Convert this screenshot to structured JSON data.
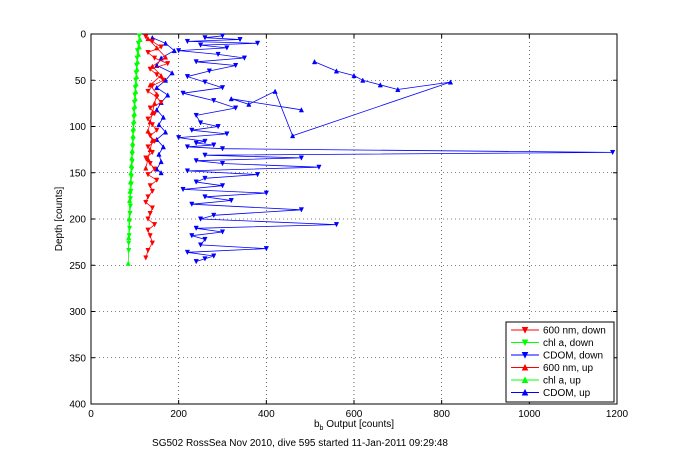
{
  "chart_data": {
    "type": "line",
    "title": "",
    "caption": "SG502 RossSea Nov 2010, dive 595 started 11-Jan-2011 09:29:48",
    "xlabel_main": "b",
    "xlabel_sub": "b",
    "xlabel_rest": " Output [counts]",
    "ylabel": "Depth [counts]",
    "xlim": [
      0,
      1200
    ],
    "ylim": [
      0,
      400
    ],
    "y_reversed": true,
    "xticks": [
      0,
      200,
      400,
      600,
      800,
      1000,
      1200
    ],
    "yticks": [
      0,
      50,
      100,
      150,
      200,
      250,
      300,
      350,
      400
    ],
    "grid": true,
    "legend_position": "bottom-right",
    "legend": [
      {
        "label": "600 nm, down",
        "color": "#ff0000",
        "marker": "triangle-down"
      },
      {
        "label": "chl a, down",
        "color": "#00ff00",
        "marker": "triangle-down"
      },
      {
        "label": "CDOM, down",
        "color": "#0000ff",
        "marker": "triangle-down"
      },
      {
        "label": "600 nm, up",
        "color": "#ff0000",
        "marker": "triangle-up"
      },
      {
        "label": "chl a, up",
        "color": "#00ff00",
        "marker": "triangle-up"
      },
      {
        "label": "CDOM, up",
        "color": "#0000ff",
        "marker": "triangle-up"
      }
    ],
    "series": [
      {
        "key": "cdom_down",
        "color": "#0000ff",
        "marker": "down",
        "x": [
          300,
          260,
          340,
          220,
          380,
          250,
          310,
          200,
          290,
          350,
          240,
          330,
          270,
          220,
          260,
          300,
          210,
          280,
          330,
          240,
          250,
          290,
          230,
          310,
          200,
          260,
          240,
          280,
          220,
          300,
          1190,
          260,
          480,
          240,
          300,
          520,
          220,
          380,
          260,
          240,
          300,
          210,
          400,
          260,
          320,
          230,
          480,
          280,
          250,
          560,
          240,
          300,
          230,
          260,
          250,
          400,
          220,
          280,
          260,
          240
        ],
        "y": [
          2,
          4,
          6,
          8,
          10,
          12,
          15,
          18,
          22,
          26,
          30,
          34,
          40,
          46,
          52,
          58,
          64,
          72,
          80,
          88,
          96,
          100,
          104,
          108,
          112,
          116,
          118,
          120,
          122,
          124,
          128,
          131,
          134,
          137,
          140,
          144,
          148,
          152,
          156,
          160,
          164,
          168,
          172,
          176,
          180,
          184,
          190,
          196,
          200,
          206,
          210,
          214,
          218,
          222,
          228,
          232,
          236,
          240,
          243,
          246
        ]
      },
      {
        "key": "cdom_up",
        "color": "#0000ff",
        "marker": "up",
        "x": [
          140,
          170,
          190,
          160,
          150,
          185,
          170,
          150,
          175,
          160,
          150,
          165,
          155,
          170,
          150,
          165,
          155,
          160,
          150,
          160
        ],
        "y": [
          4,
          10,
          18,
          26,
          34,
          42,
          50,
          58,
          66,
          74,
          82,
          90,
          98,
          106,
          114,
          122,
          130,
          138,
          146,
          150
        ]
      },
      {
        "key": "cdom_up_far",
        "color": "#0000ff",
        "marker": "up",
        "x": [
          510,
          560,
          600,
          620,
          660,
          700,
          820,
          460,
          420,
          360,
          320,
          480
        ],
        "y": [
          30,
          40,
          45,
          50,
          55,
          60,
          52,
          110,
          62,
          76,
          70,
          82
        ]
      },
      {
        "key": "red_down",
        "color": "#ff0000",
        "marker": "down",
        "x": [
          125,
          140,
          160,
          130,
          145,
          175,
          135,
          150,
          165,
          140,
          130,
          150,
          160,
          135,
          145,
          130,
          140,
          150,
          135,
          145,
          130,
          140,
          125,
          135,
          145,
          130,
          150,
          135,
          140,
          130,
          125,
          140,
          135,
          130,
          145,
          130,
          135,
          140,
          130,
          125
        ],
        "y": [
          3,
          8,
          14,
          20,
          26,
          32,
          38,
          44,
          50,
          56,
          62,
          68,
          74,
          80,
          86,
          92,
          98,
          104,
          110,
          116,
          122,
          128,
          134,
          140,
          146,
          152,
          158,
          164,
          170,
          176,
          182,
          188,
          194,
          200,
          206,
          212,
          218,
          226,
          234,
          242
        ]
      },
      {
        "key": "red_up",
        "color": "#ff0000",
        "marker": "up",
        "x": [
          130,
          150,
          170,
          140,
          160,
          135,
          150,
          145,
          140,
          135,
          130,
          140,
          135,
          130,
          125
        ],
        "y": [
          5,
          15,
          25,
          35,
          45,
          55,
          65,
          75,
          85,
          95,
          105,
          115,
          125,
          135,
          145
        ]
      },
      {
        "key": "green_down",
        "color": "#00ff00",
        "marker": "down",
        "x": [
          110,
          108,
          106,
          105,
          104,
          103,
          102,
          101,
          100,
          99,
          98,
          98,
          97,
          96,
          96,
          95,
          94,
          94,
          93,
          92,
          92,
          91,
          90,
          90,
          89,
          88,
          88,
          87,
          86,
          86
        ],
        "y": [
          2,
          10,
          18,
          26,
          34,
          42,
          50,
          58,
          66,
          74,
          82,
          90,
          98,
          106,
          114,
          122,
          130,
          138,
          146,
          154,
          162,
          170,
          178,
          186,
          194,
          202,
          210,
          218,
          226,
          234
        ]
      },
      {
        "key": "green_up",
        "color": "#00ff00",
        "marker": "up",
        "x": [
          112,
          110,
          108,
          106,
          105,
          104,
          103,
          102,
          101,
          100,
          99,
          98,
          97,
          96,
          95,
          94,
          93,
          92,
          91,
          90,
          89,
          88,
          87,
          86,
          85
        ],
        "y": [
          6,
          14,
          22,
          30,
          38,
          46,
          54,
          62,
          70,
          78,
          86,
          94,
          102,
          110,
          118,
          126,
          134,
          142,
          150,
          160,
          170,
          180,
          200,
          220,
          248
        ]
      }
    ]
  }
}
